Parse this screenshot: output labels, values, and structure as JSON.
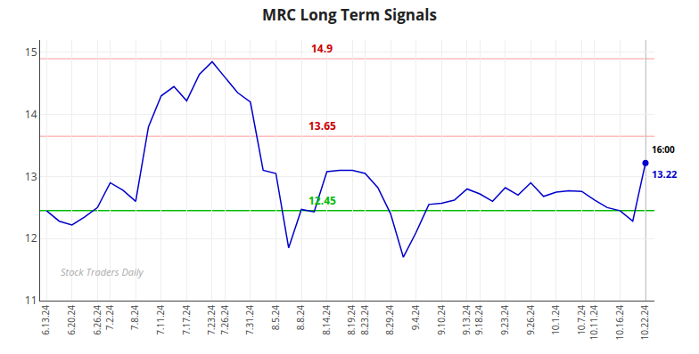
{
  "chart_data": {
    "type": "line",
    "title": "MRC Long Term Signals",
    "categories": [
      "6.13.24",
      null,
      "6.20.24",
      null,
      "6.26.24",
      "7.2.24",
      null,
      "7.8.24",
      null,
      "7.11.24",
      null,
      "7.17.24",
      null,
      "7.23.24",
      "7.26.24",
      null,
      "7.31.24",
      null,
      "8.5.24",
      null,
      "8.8.24",
      null,
      "8.14.24",
      null,
      "8.19.24",
      "8.23.24",
      null,
      "8.29.24",
      null,
      "9.4.24",
      null,
      "9.10.24",
      null,
      "9.13.24",
      "9.18.24",
      null,
      "9.23.24",
      null,
      "9.26.24",
      null,
      "10.1.24",
      null,
      "10.7.24",
      "10.11.24",
      null,
      "10.16.24",
      null,
      "10.22.24"
    ],
    "values": [
      12.45,
      12.28,
      12.22,
      12.35,
      12.5,
      12.9,
      12.78,
      12.6,
      13.8,
      14.3,
      14.45,
      14.22,
      14.65,
      14.85,
      14.6,
      14.35,
      14.2,
      13.1,
      13.05,
      11.85,
      12.47,
      12.43,
      13.08,
      13.1,
      13.1,
      13.05,
      12.82,
      12.4,
      11.7,
      12.1,
      12.55,
      12.57,
      12.62,
      12.8,
      12.72,
      12.6,
      12.82,
      12.7,
      12.9,
      12.68,
      12.75,
      12.77,
      12.76,
      12.62,
      12.5,
      12.45,
      12.28,
      13.22
    ],
    "color": "#0000cc",
    "ylim": [
      11,
      15.2
    ],
    "yticks": [
      11,
      12,
      13,
      14,
      15
    ],
    "grid": true,
    "hlines": [
      {
        "value": 14.9,
        "label": "14.9",
        "color": "#ffbbbb",
        "label_color": "#cc0000"
      },
      {
        "value": 13.65,
        "label": "13.65",
        "color": "#ffbbbb",
        "label_color": "#cc0000"
      },
      {
        "value": 12.45,
        "label": "12.45",
        "color": "#00bb00",
        "label_color": "#00bb00"
      }
    ],
    "end_labels": {
      "time": "16:00",
      "value": "13.22"
    },
    "watermark": "Stock Traders Daily"
  }
}
